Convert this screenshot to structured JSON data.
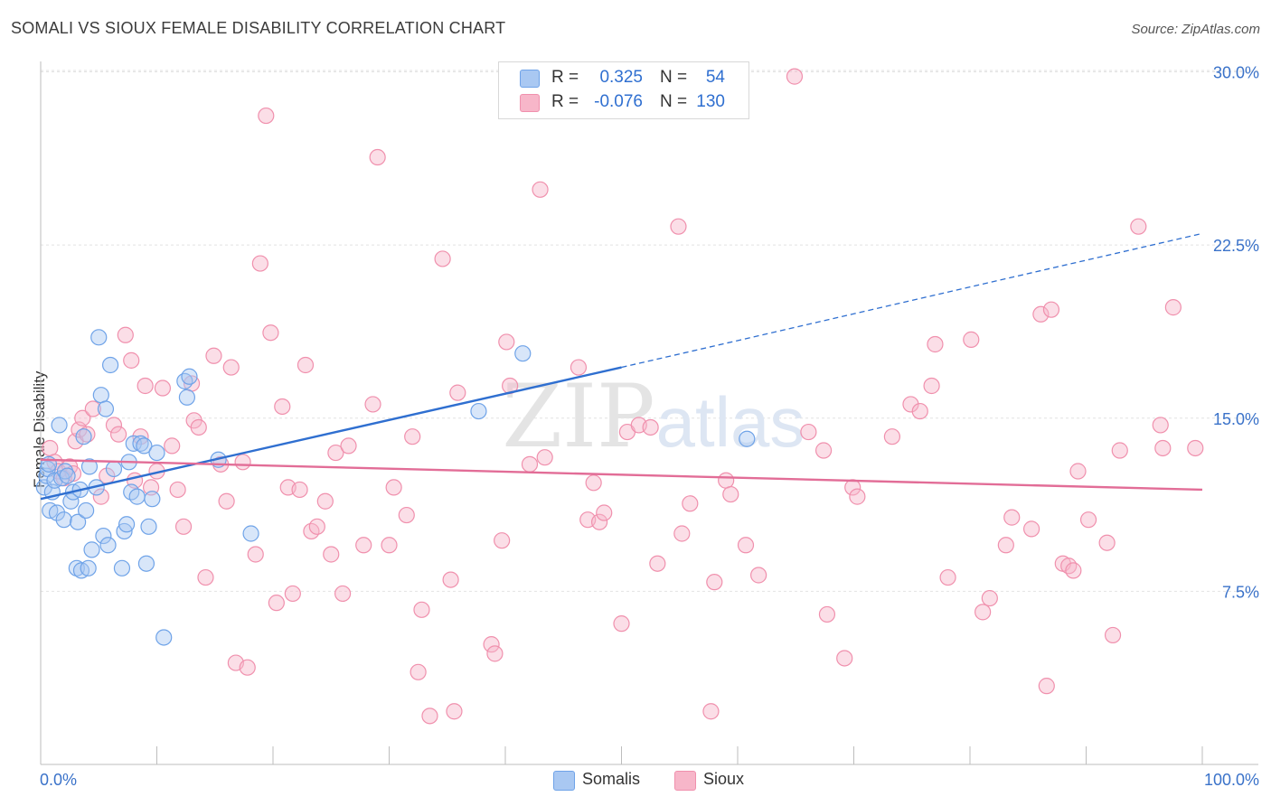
{
  "title": "SOMALI VS SIOUX FEMALE DISABILITY CORRELATION CHART",
  "source": "Source: ZipAtlas.com",
  "watermark": {
    "zip": "ZIP",
    "atlas": "atlas"
  },
  "stats": [
    {
      "r_label": "R = ",
      "r_value": "0.325",
      "n_label": "N = ",
      "n_value": "54",
      "color": "#a9c8f2"
    },
    {
      "r_label": "R = ",
      "r_value": "-0.076",
      "n_label": "N = ",
      "n_value": "130",
      "color": "#f7b6c9"
    }
  ],
  "chart_data": {
    "type": "scatter",
    "title": "SOMALI VS SIOUX FEMALE DISABILITY CORRELATION CHART",
    "xlabel": "",
    "ylabel": "Female Disability",
    "xlim": [
      0,
      100
    ],
    "ylim": [
      0,
      30.5
    ],
    "x_tick_labels": [
      "0.0%",
      "100.0%"
    ],
    "y_ticks": [
      7.5,
      15.0,
      22.5,
      30.0
    ],
    "y_tick_labels": [
      "7.5%",
      "15.0%",
      "22.5%",
      "30.0%"
    ],
    "grid": true,
    "legend_position": "bottom-center",
    "series": [
      {
        "name": "Somalis",
        "color": "#6fa3e8",
        "fill": "#a9c8f2",
        "line_color": "#2f6fd0",
        "trend": {
          "x0": 0,
          "y0": 11.5,
          "x1": 50,
          "y1": 17.2,
          "dashed_to_x": 100,
          "dashed_to_y": 23.0
        },
        "points": [
          [
            0.3,
            12.0
          ],
          [
            0.5,
            12.5
          ],
          [
            0.6,
            12.8
          ],
          [
            0.8,
            11.0
          ],
          [
            1.0,
            11.8
          ],
          [
            1.2,
            12.3
          ],
          [
            1.4,
            10.9
          ],
          [
            1.6,
            14.7
          ],
          [
            1.8,
            12.4
          ],
          [
            2.0,
            10.6
          ],
          [
            2.1,
            12.7
          ],
          [
            2.3,
            12.5
          ],
          [
            2.6,
            11.4
          ],
          [
            2.8,
            11.8
          ],
          [
            3.1,
            8.5
          ],
          [
            3.2,
            10.5
          ],
          [
            3.4,
            11.9
          ],
          [
            3.5,
            8.4
          ],
          [
            3.7,
            14.2
          ],
          [
            3.9,
            11.0
          ],
          [
            4.1,
            8.5
          ],
          [
            4.2,
            12.9
          ],
          [
            4.4,
            9.3
          ],
          [
            4.8,
            12.0
          ],
          [
            5.0,
            18.5
          ],
          [
            5.2,
            16.0
          ],
          [
            5.4,
            9.9
          ],
          [
            5.6,
            15.4
          ],
          [
            5.8,
            9.5
          ],
          [
            6.0,
            17.3
          ],
          [
            6.3,
            12.8
          ],
          [
            7.0,
            8.5
          ],
          [
            7.2,
            10.1
          ],
          [
            7.4,
            10.4
          ],
          [
            7.6,
            13.1
          ],
          [
            7.8,
            11.8
          ],
          [
            8.0,
            13.9
          ],
          [
            8.3,
            11.6
          ],
          [
            8.6,
            13.9
          ],
          [
            8.9,
            13.8
          ],
          [
            9.1,
            8.7
          ],
          [
            9.3,
            10.3
          ],
          [
            9.6,
            11.5
          ],
          [
            10.0,
            13.5
          ],
          [
            10.6,
            5.5
          ],
          [
            12.4,
            16.6
          ],
          [
            12.6,
            15.9
          ],
          [
            12.8,
            16.8
          ],
          [
            15.3,
            13.2
          ],
          [
            18.1,
            10.0
          ],
          [
            37.7,
            15.3
          ],
          [
            41.5,
            17.8
          ],
          [
            60.8,
            14.1
          ],
          [
            0.7,
            13.0
          ]
        ]
      },
      {
        "name": "Sioux",
        "color": "#f090ad",
        "fill": "#f7b6c9",
        "line_color": "#e26d97",
        "trend": {
          "x0": 0,
          "y0": 13.2,
          "x1": 100,
          "y1": 11.9
        },
        "points": [
          [
            0.8,
            13.7
          ],
          [
            1.2,
            13.1
          ],
          [
            1.5,
            12.7
          ],
          [
            2.0,
            12.4
          ],
          [
            2.5,
            12.9
          ],
          [
            2.8,
            12.6
          ],
          [
            3.0,
            14.0
          ],
          [
            3.3,
            14.5
          ],
          [
            3.6,
            15.0
          ],
          [
            4.0,
            14.3
          ],
          [
            4.5,
            15.4
          ],
          [
            5.2,
            11.6
          ],
          [
            5.7,
            12.5
          ],
          [
            6.3,
            14.7
          ],
          [
            6.7,
            14.3
          ],
          [
            7.3,
            18.6
          ],
          [
            7.8,
            17.5
          ],
          [
            8.1,
            12.3
          ],
          [
            8.6,
            14.2
          ],
          [
            9.0,
            16.4
          ],
          [
            9.5,
            12.0
          ],
          [
            10.0,
            12.7
          ],
          [
            10.5,
            16.3
          ],
          [
            11.3,
            13.8
          ],
          [
            11.8,
            11.9
          ],
          [
            12.3,
            10.3
          ],
          [
            13.0,
            16.5
          ],
          [
            13.2,
            14.9
          ],
          [
            13.6,
            14.6
          ],
          [
            14.2,
            8.1
          ],
          [
            14.9,
            17.7
          ],
          [
            15.5,
            13.0
          ],
          [
            16.0,
            11.4
          ],
          [
            16.4,
            17.2
          ],
          [
            16.8,
            4.4
          ],
          [
            17.4,
            13.1
          ],
          [
            17.8,
            4.2
          ],
          [
            18.5,
            9.1
          ],
          [
            18.9,
            21.7
          ],
          [
            19.4,
            28.1
          ],
          [
            19.8,
            18.7
          ],
          [
            20.3,
            7.0
          ],
          [
            20.8,
            15.5
          ],
          [
            21.3,
            12.0
          ],
          [
            21.7,
            7.4
          ],
          [
            22.3,
            11.9
          ],
          [
            22.8,
            17.3
          ],
          [
            23.3,
            10.1
          ],
          [
            23.8,
            10.3
          ],
          [
            24.5,
            11.4
          ],
          [
            25.0,
            9.1
          ],
          [
            25.4,
            13.5
          ],
          [
            26.0,
            7.4
          ],
          [
            26.5,
            13.8
          ],
          [
            27.8,
            9.5
          ],
          [
            28.6,
            15.6
          ],
          [
            29.0,
            26.3
          ],
          [
            30.0,
            9.5
          ],
          [
            30.4,
            12.0
          ],
          [
            31.5,
            10.8
          ],
          [
            32.0,
            14.2
          ],
          [
            32.5,
            4.0
          ],
          [
            32.8,
            6.7
          ],
          [
            33.5,
            2.1
          ],
          [
            34.6,
            21.9
          ],
          [
            35.3,
            8.0
          ],
          [
            35.6,
            2.3
          ],
          [
            35.9,
            16.1
          ],
          [
            38.8,
            5.2
          ],
          [
            39.1,
            4.8
          ],
          [
            39.7,
            9.7
          ],
          [
            40.1,
            18.3
          ],
          [
            40.4,
            16.4
          ],
          [
            42.1,
            13.0
          ],
          [
            43.0,
            24.9
          ],
          [
            43.4,
            13.3
          ],
          [
            46.3,
            17.2
          ],
          [
            47.1,
            10.6
          ],
          [
            47.6,
            12.2
          ],
          [
            48.1,
            10.5
          ],
          [
            48.5,
            10.9
          ],
          [
            50.0,
            6.1
          ],
          [
            50.5,
            14.4
          ],
          [
            51.5,
            14.7
          ],
          [
            52.5,
            14.6
          ],
          [
            54.9,
            23.3
          ],
          [
            53.1,
            8.7
          ],
          [
            55.2,
            10.0
          ],
          [
            55.9,
            11.3
          ],
          [
            57.7,
            2.3
          ],
          [
            58.0,
            7.9
          ],
          [
            59.0,
            12.3
          ],
          [
            59.4,
            11.7
          ],
          [
            60.7,
            9.5
          ],
          [
            61.8,
            8.2
          ],
          [
            64.9,
            29.8
          ],
          [
            66.1,
            14.4
          ],
          [
            67.4,
            13.6
          ],
          [
            67.7,
            6.5
          ],
          [
            69.2,
            4.6
          ],
          [
            69.9,
            12.0
          ],
          [
            70.3,
            11.6
          ],
          [
            73.3,
            14.2
          ],
          [
            74.9,
            15.6
          ],
          [
            75.7,
            15.3
          ],
          [
            76.7,
            16.4
          ],
          [
            77.0,
            18.2
          ],
          [
            78.1,
            8.1
          ],
          [
            80.1,
            18.4
          ],
          [
            81.1,
            6.6
          ],
          [
            81.7,
            7.2
          ],
          [
            83.1,
            9.5
          ],
          [
            83.6,
            10.7
          ],
          [
            85.3,
            10.2
          ],
          [
            86.1,
            19.5
          ],
          [
            86.6,
            3.4
          ],
          [
            87.0,
            19.7
          ],
          [
            88.0,
            8.7
          ],
          [
            88.5,
            8.6
          ],
          [
            88.9,
            8.4
          ],
          [
            89.3,
            12.7
          ],
          [
            90.2,
            10.6
          ],
          [
            91.8,
            9.6
          ],
          [
            92.3,
            5.6
          ],
          [
            92.9,
            13.6
          ],
          [
            94.5,
            23.3
          ],
          [
            96.4,
            14.7
          ],
          [
            96.6,
            13.7
          ],
          [
            97.5,
            19.8
          ],
          [
            99.4,
            13.7
          ]
        ]
      }
    ]
  }
}
